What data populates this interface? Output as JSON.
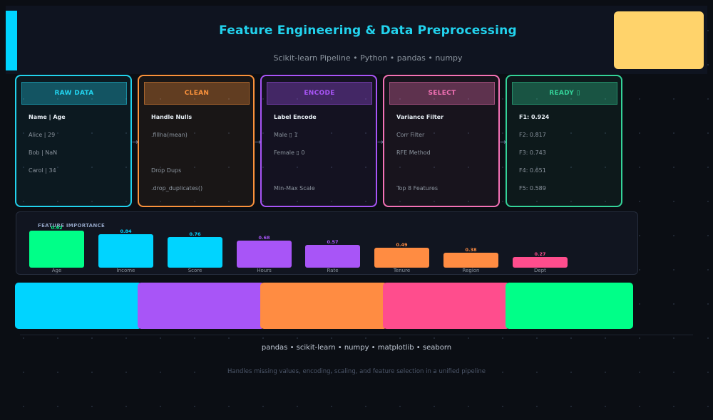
{
  "header": {
    "title": "Feature Engineering  &  Data Preprocessing",
    "subtitle": "Scikit-learn Pipeline  •  Python  •  pandas  •  numpy"
  },
  "stages": [
    {
      "title": "RAW DATA",
      "color": "#22d3ee",
      "lines": [
        "Name  |  Age",
        "Alice  |  29",
        "Bob    |  NaN",
        "Carol  |  34"
      ]
    },
    {
      "title": "CLEAN",
      "color": "#fb923c",
      "lines": [
        "Handle Nulls",
        ".fillna(mean)",
        "Drop Dups",
        ".drop_duplicates()"
      ]
    },
    {
      "title": "ENCODE",
      "color": "#a855f7",
      "lines": [
        "Label Encode",
        "Male  ▯  1",
        "Female ▯  0",
        "Min-Max Scale"
      ]
    },
    {
      "title": "SELECT",
      "color": "#f472b6",
      "lines": [
        "Variance Filter",
        "Corr Filter",
        "RFE Method",
        "Top 8 Features"
      ]
    },
    {
      "title": "READY ▯",
      "color": "#34d399",
      "lines": [
        "F1:  0.924",
        "F2:  0.817",
        "F3:  0.743",
        "F4:  0.651",
        "F5:  0.589"
      ]
    }
  ],
  "feature_importance": {
    "title": "FEATURE IMPORTANCE",
    "features": [
      {
        "name": "Age",
        "value": 0.92,
        "color": "#00ff88"
      },
      {
        "name": "Income",
        "value": 0.84,
        "color": "#00d4ff"
      },
      {
        "name": "Score",
        "value": 0.76,
        "color": "#00d4ff"
      },
      {
        "name": "Hours",
        "value": 0.68,
        "color": "#a855f7"
      },
      {
        "name": "Rate",
        "value": 0.57,
        "color": "#a855f7"
      },
      {
        "name": "Tenure",
        "value": 0.49,
        "color": "#ff8c42"
      },
      {
        "name": "Region",
        "value": 0.38,
        "color": "#ff8c42"
      },
      {
        "name": "Dept",
        "value": 0.27,
        "color": "#ff4d8d"
      }
    ]
  },
  "stripes": [
    {
      "color": "#00d4ff"
    },
    {
      "color": "#a855f7"
    },
    {
      "color": "#ff8c42"
    },
    {
      "color": "#ff4d8d"
    },
    {
      "color": "#00ff88"
    }
  ],
  "footer": {
    "tools": "pandas  •  scikit-learn  •  numpy  •  matplotlib  •  seaborn",
    "tagline": "Handles missing values, encoding, scaling, and feature selection in a unified pipeline"
  },
  "colors": {
    "background": "#0b0e14",
    "header_accent": "#00d4ff",
    "title": "#22d3ee",
    "badge": "#ffd36b"
  }
}
